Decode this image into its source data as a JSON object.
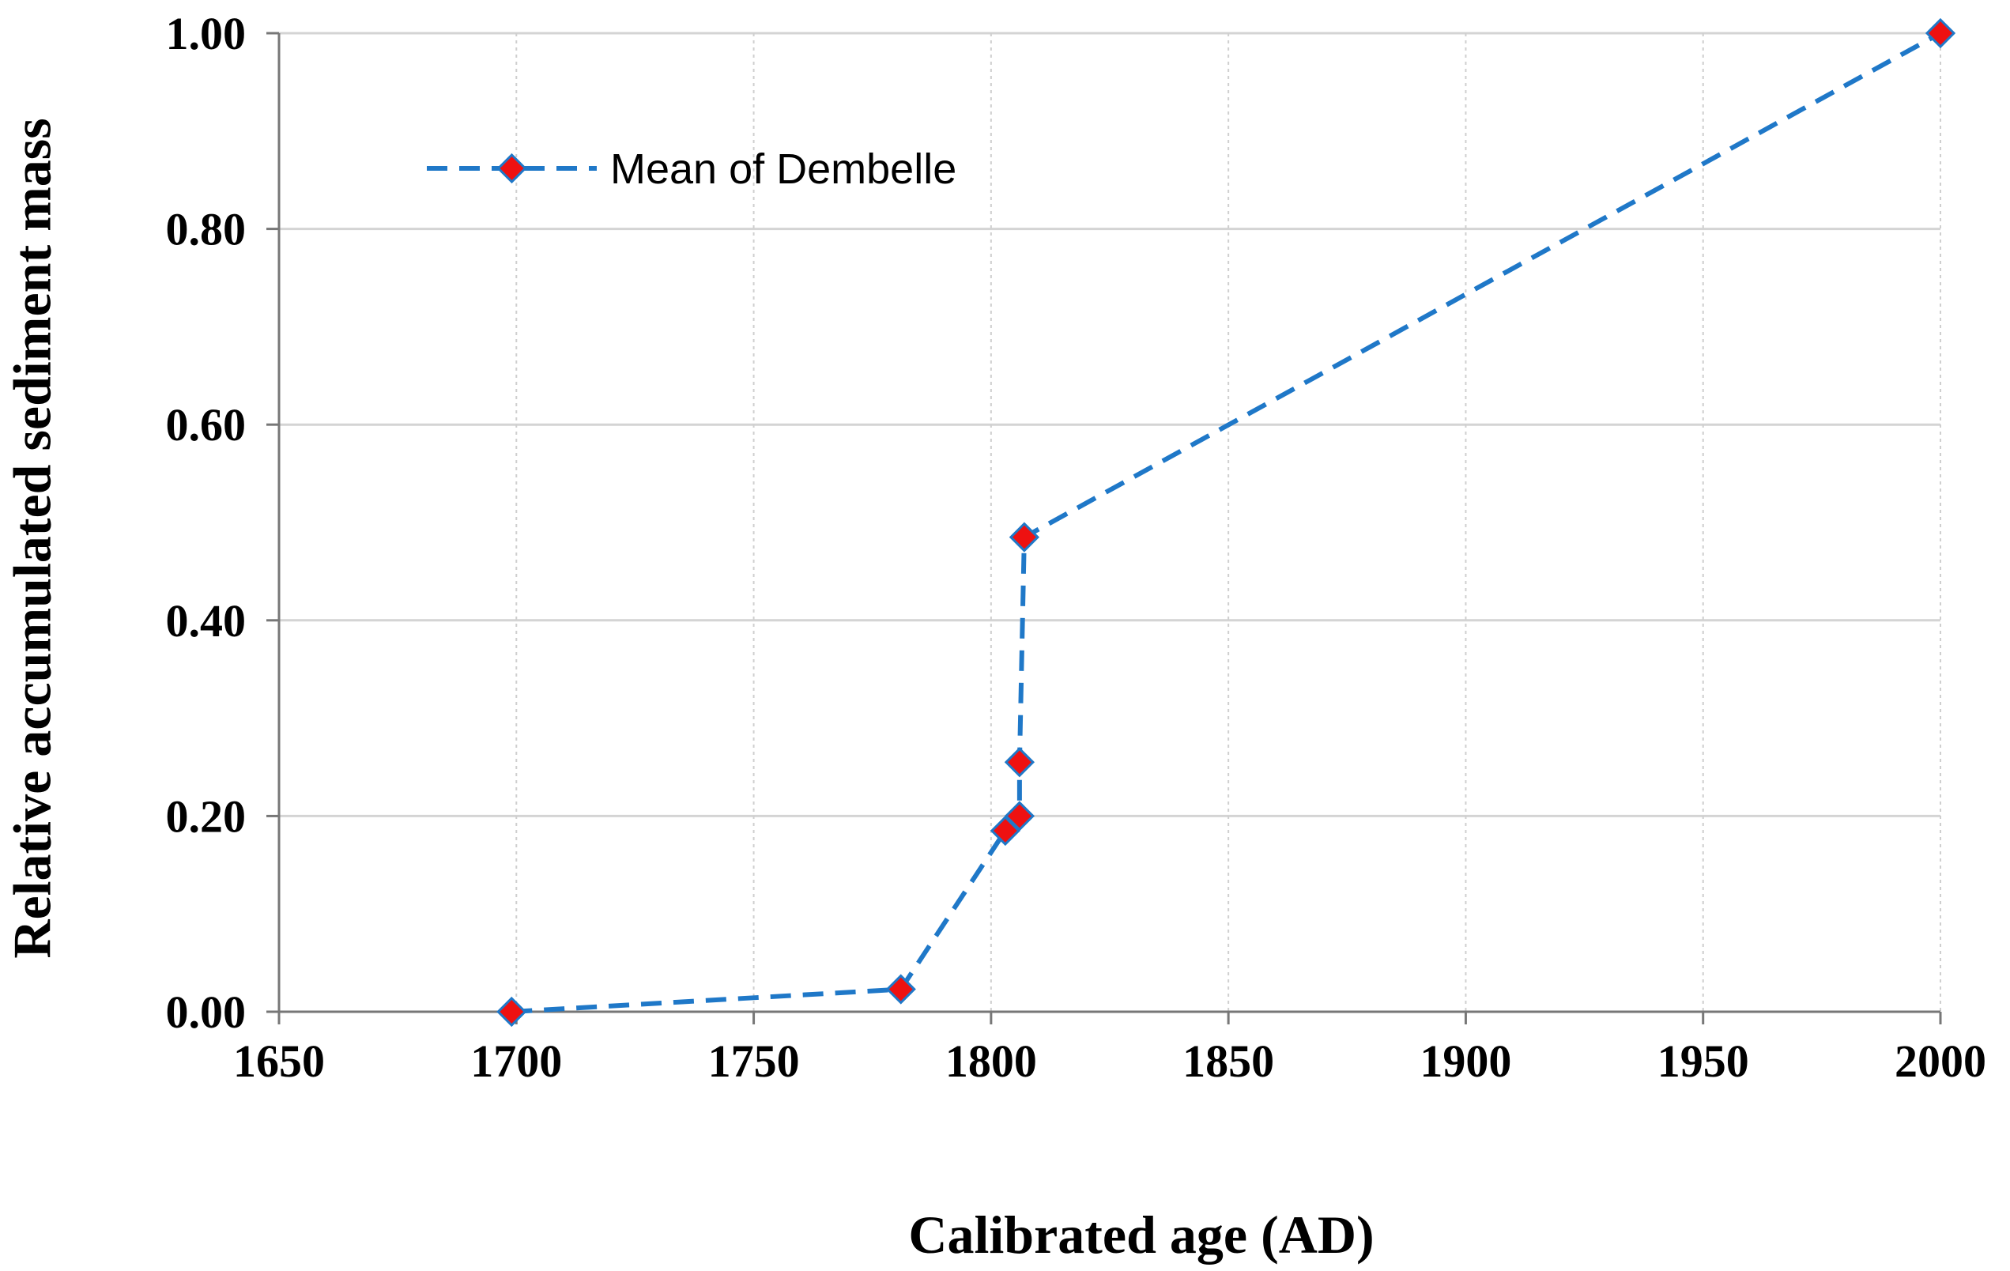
{
  "chart_data": {
    "type": "line",
    "title": "",
    "xlabel": "Calibrated age (AD)",
    "ylabel": "Relative accumulated sediment mass",
    "xlim": [
      1650,
      2000
    ],
    "ylim": [
      0,
      1.0
    ],
    "xticks": [
      1650,
      1700,
      1750,
      1800,
      1850,
      1900,
      1950,
      2000
    ],
    "yticks": [
      0.0,
      0.2,
      0.4,
      0.6,
      0.8,
      1.0
    ],
    "xtick_labels": [
      "1650",
      "1700",
      "1750",
      "1800",
      "1850",
      "1900",
      "1950",
      "2000"
    ],
    "ytick_labels": [
      "0.00",
      "0.20",
      "0.40",
      "0.60",
      "0.80",
      "1.00"
    ],
    "grid": "dotted vertical, solid horizontal",
    "legend_position": "top-left",
    "series": [
      {
        "name": "Mean of Dembelle",
        "line_color": "#1f78c8",
        "marker_color": "#ee1111",
        "line_style": "dashed",
        "marker": "diamond",
        "x": [
          1699,
          1781,
          1803,
          1806,
          1806,
          1807,
          2000
        ],
        "y": [
          0.0,
          0.023,
          0.185,
          0.2,
          0.255,
          0.485,
          1.0
        ]
      }
    ]
  }
}
